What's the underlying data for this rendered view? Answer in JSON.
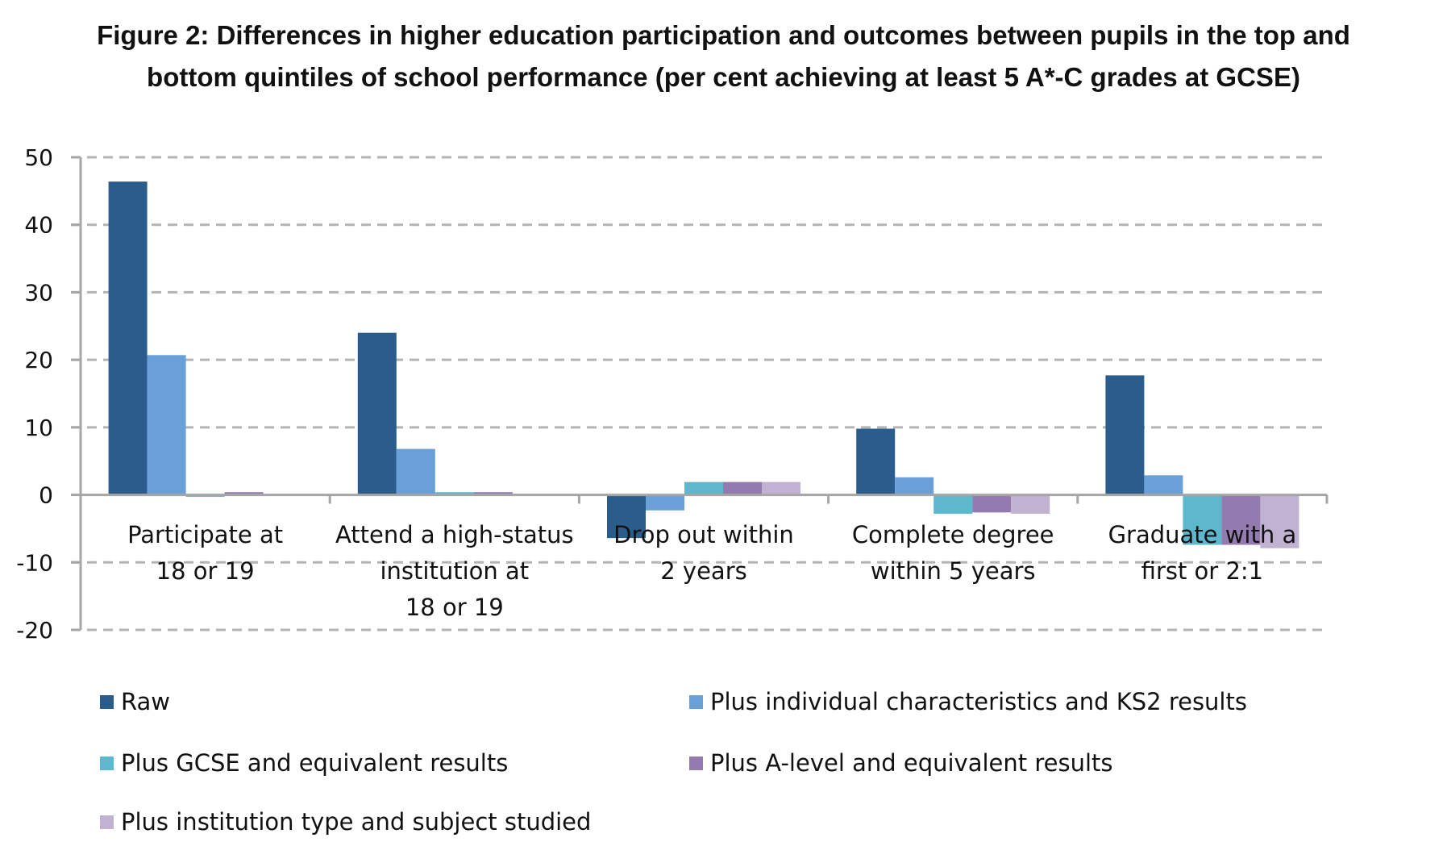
{
  "chart_data": {
    "type": "bar",
    "title": "Figure 2: Differences in higher education participation and outcomes between pupils in the top and bottom quintiles of school performance (per cent achieving at least 5 A*-C grades at GCSE)",
    "title_lines": [
      "Figure 2: Differences in higher education participation and outcomes between pupils in the top and",
      "bottom quintiles of school performance (per cent achieving at least 5 A*-C grades at GCSE)"
    ],
    "xlabel": "",
    "ylabel": "",
    "ylim": [
      -20,
      50
    ],
    "yticks": [
      50,
      40,
      30,
      20,
      10,
      0,
      -10,
      -20
    ],
    "grid": true,
    "legend_position": "bottom",
    "categories": [
      "Participate at 18 or 19",
      "Attend a high-status institution at 18 or 19",
      "Drop out within 2 years",
      "Complete degree within 5 years",
      "Graduate with a first or 2:1"
    ],
    "category_lines": [
      [
        "Participate at",
        "18 or 19"
      ],
      [
        "Attend a high-status",
        "institution at",
        "18 or 19"
      ],
      [
        "Drop out within",
        "2 years"
      ],
      [
        "Complete degree",
        "within 5 years"
      ],
      [
        "Graduate with a",
        "first or 2:1"
      ]
    ],
    "series": [
      {
        "name": "Raw",
        "color": "#2B5D8C",
        "values": [
          46.4,
          24.0,
          -6.4,
          9.8,
          17.7
        ]
      },
      {
        "name": "Plus individual characteristics and KS2 results",
        "color": "#6AA0D8",
        "values": [
          20.7,
          6.8,
          -2.3,
          2.6,
          2.9
        ]
      },
      {
        "name": "Plus GCSE and equivalent results",
        "color": "#5DB8CE",
        "values": [
          -0.3,
          0.4,
          1.9,
          -2.8,
          -7.4
        ]
      },
      {
        "name": "Plus A-level and equivalent results",
        "color": "#937BB0",
        "values": [
          0.4,
          0.4,
          1.9,
          -2.6,
          -7.4
        ]
      },
      {
        "name": "Plus institution type and subject studied",
        "color": "#C1B2D2",
        "values": [
          0,
          0,
          1.9,
          -2.8,
          -7.9
        ]
      }
    ]
  }
}
